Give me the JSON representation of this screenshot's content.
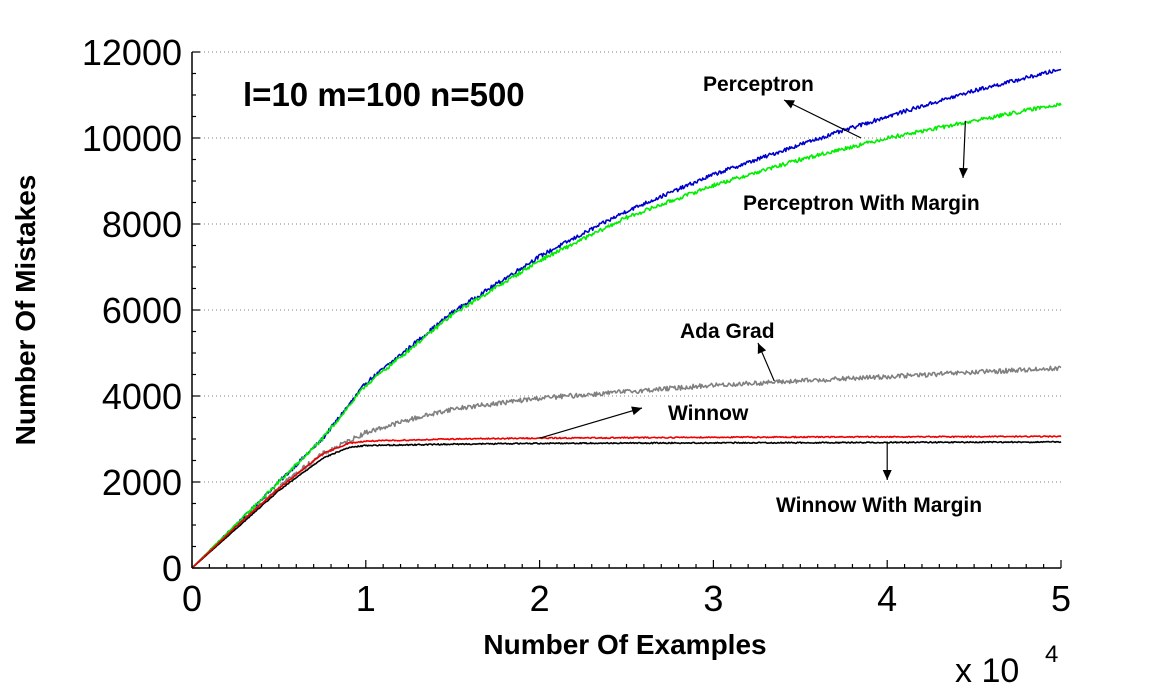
{
  "chart_data": {
    "type": "line",
    "title": "",
    "params_label": "l=10 m=100 n=500",
    "xlabel": "Number Of Examples",
    "ylabel": "Number Of Mistakes",
    "x_multiplier": {
      "base": "x 10",
      "exponent": "4"
    },
    "xlim": [
      0,
      5
    ],
    "ylim": [
      0,
      12000
    ],
    "x_ticks": [
      "0",
      "1",
      "2",
      "3",
      "4",
      "5"
    ],
    "y_ticks": [
      "0",
      "2000",
      "4000",
      "6000",
      "8000",
      "10000",
      "12000"
    ],
    "grid": "horizontal-dotted",
    "legend": "inline-annotations",
    "series": [
      {
        "name": "Perceptron",
        "color": "#0000cc",
        "x": [
          0,
          0.25,
          0.5,
          0.75,
          1,
          1.5,
          2,
          2.5,
          3,
          3.5,
          4,
          4.5,
          5
        ],
        "y": [
          0,
          1000,
          2000,
          3000,
          4300,
          5950,
          7250,
          8300,
          9150,
          9850,
          10500,
          11100,
          11600
        ]
      },
      {
        "name": "Perceptron With Margin",
        "color": "#00ee00",
        "x": [
          0,
          0.25,
          0.5,
          0.75,
          1,
          1.5,
          2,
          2.5,
          3,
          3.5,
          4,
          4.5,
          5
        ],
        "y": [
          0,
          1000,
          2000,
          3000,
          4250,
          5900,
          7150,
          8150,
          8900,
          9500,
          10000,
          10400,
          10800
        ]
      },
      {
        "name": "Ada Grad",
        "color": "#808080",
        "x": [
          0,
          0.25,
          0.5,
          0.75,
          1,
          1.25,
          1.5,
          2,
          2.5,
          3,
          3.5,
          4,
          4.5,
          5
        ],
        "y": [
          0,
          950,
          1900,
          2650,
          3150,
          3450,
          3700,
          3950,
          4100,
          4250,
          4350,
          4450,
          4550,
          4650
        ]
      },
      {
        "name": "Winnow",
        "color": "#ee0000",
        "x": [
          0,
          0.25,
          0.5,
          0.75,
          0.9,
          1,
          1.5,
          2,
          3,
          4,
          5
        ],
        "y": [
          0,
          950,
          1850,
          2650,
          2900,
          2950,
          3000,
          3020,
          3040,
          3050,
          3060
        ]
      },
      {
        "name": "Winnow With Margin",
        "color": "#000000",
        "x": [
          0,
          0.25,
          0.5,
          0.75,
          0.9,
          1,
          1.5,
          2,
          3,
          4,
          5
        ],
        "y": [
          0,
          900,
          1800,
          2550,
          2800,
          2850,
          2880,
          2900,
          2910,
          2920,
          2930
        ]
      }
    ],
    "annotations": [
      {
        "text": "Perceptron",
        "series": "Perceptron",
        "at_x": 3.85,
        "at_y": 10000
      },
      {
        "text": "Perceptron With Margin",
        "series": "Perceptron With Margin",
        "at_x": 4.45,
        "at_y": 10400
      },
      {
        "text": "Ada Grad",
        "series": "Ada Grad",
        "at_x": 3.35,
        "at_y": 4350
      },
      {
        "text": "Winnow",
        "series": "Winnow",
        "at_x": 2.0,
        "at_y": 3020
      },
      {
        "text": "Winnow With Margin",
        "series": "Winnow With Margin",
        "at_x": 4.0,
        "at_y": 2920
      }
    ]
  }
}
